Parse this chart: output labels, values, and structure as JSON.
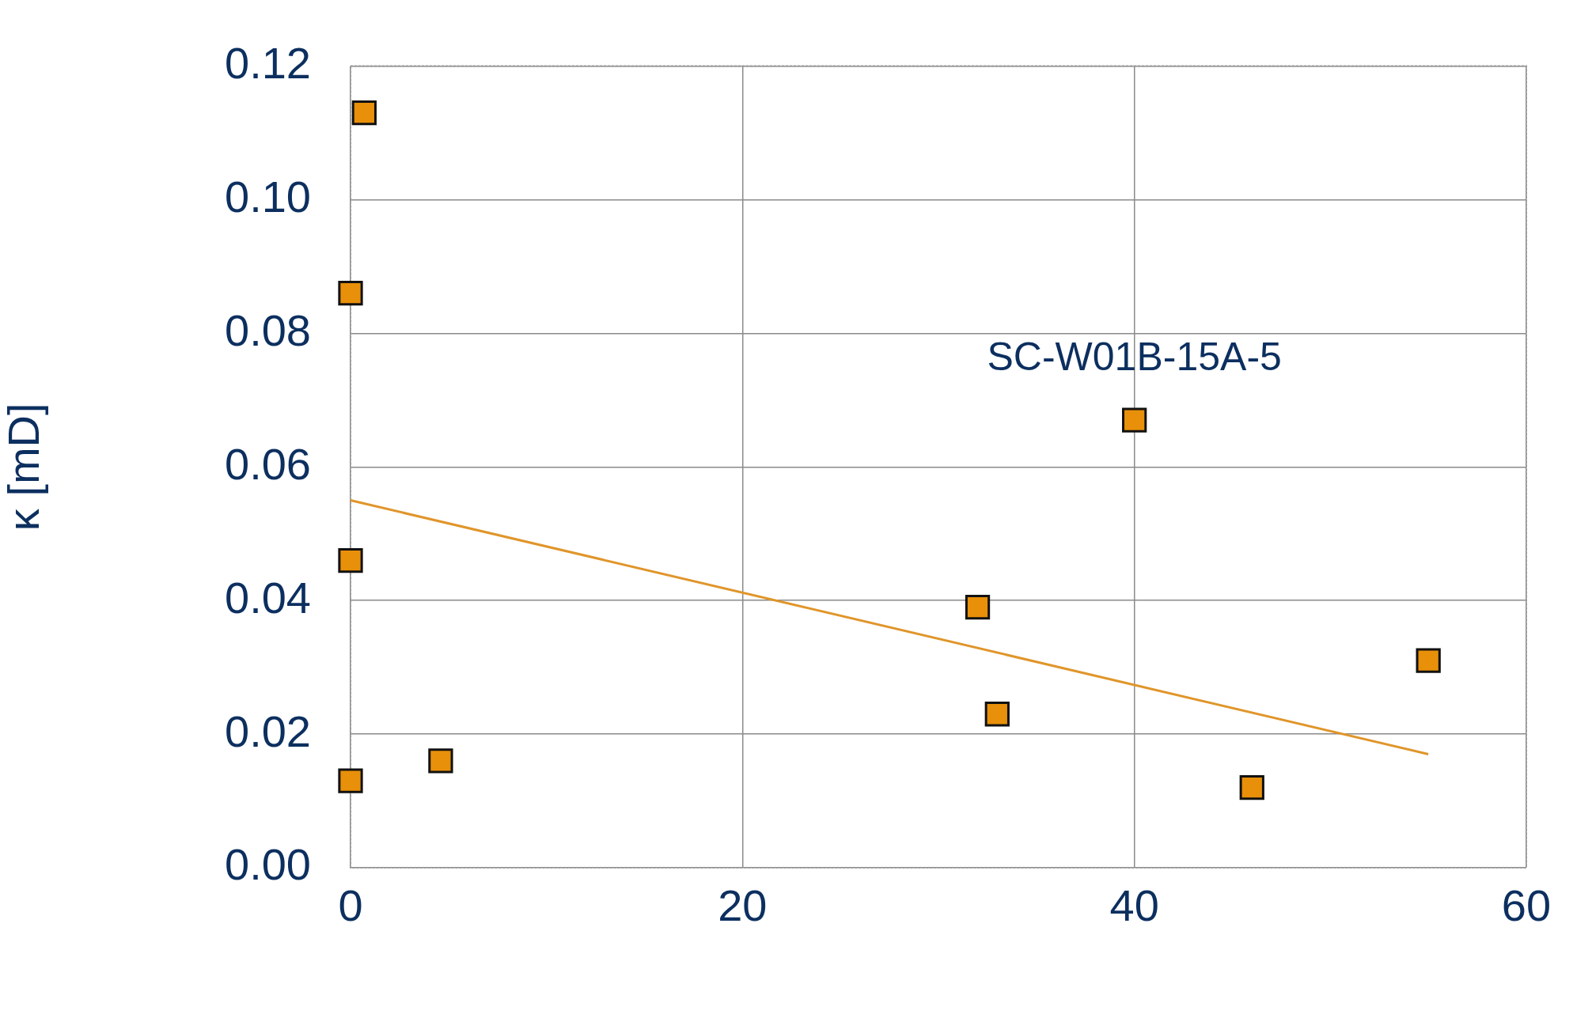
{
  "chart_data": {
    "type": "scatter",
    "ylabel": "κ [mD]",
    "xlim": [
      0,
      60
    ],
    "xticks": [
      0,
      20,
      40,
      60
    ],
    "ylim": [
      0,
      0.12
    ],
    "yticks": [
      {
        "value": 0,
        "label": "0.00"
      },
      {
        "value": 0.02,
        "label": "0.02"
      },
      {
        "value": 0.04,
        "label": "0.04"
      },
      {
        "value": 0.06,
        "label": "0.06"
      },
      {
        "value": 0.08,
        "label": "0.08"
      },
      {
        "value": 0.1,
        "label": "0.10"
      },
      {
        "value": 0.12,
        "label": "0.12"
      }
    ],
    "grid": true,
    "legend": false,
    "series": [
      {
        "marker": "square",
        "color": "#e8900a",
        "x": [
          0.7,
          0,
          0,
          0,
          4.6,
          32,
          33,
          40,
          46,
          55
        ],
        "values": [
          0.113,
          0.086,
          0.046,
          0.013,
          0.016,
          0.039,
          0.023,
          0.067,
          0.012,
          0.031
        ]
      },
      {
        "type": "line",
        "marker": "none",
        "color": "#e0952a",
        "x": [
          0,
          55
        ],
        "values": [
          0.055,
          0.017
        ]
      }
    ],
    "annotations": [
      {
        "text": "SC-W01B-15A-5",
        "x": 40,
        "y": 0.067
      }
    ]
  }
}
